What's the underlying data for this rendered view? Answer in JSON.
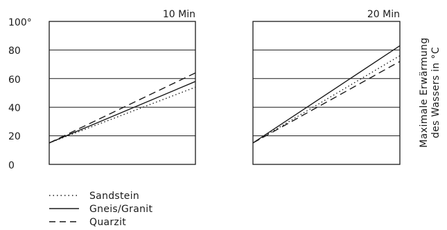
{
  "chart_data": {
    "type": "line",
    "ylabel_line1": "Maximale Erwärmung",
    "ylabel_line2": "des Wassers in °C",
    "ylim": [
      0,
      100
    ],
    "y_ticks": [
      "0",
      "20",
      "40",
      "60",
      "80",
      "100°"
    ],
    "grid": "horizontal",
    "legend_position": "bottom-left",
    "line_colors": "#1a1a1a",
    "legend": [
      {
        "key": "sandstein",
        "label": "Sandstein",
        "style": "dotted"
      },
      {
        "key": "gneis",
        "label": "Gneis/Granit",
        "style": "solid"
      },
      {
        "key": "quarzit",
        "label": "Quarzit",
        "style": "dashed"
      }
    ],
    "panels": [
      {
        "title": "10 Min",
        "series": [
          {
            "key": "sandstein",
            "start": 15,
            "end": 54
          },
          {
            "key": "gneis",
            "start": 15,
            "end": 58
          },
          {
            "key": "quarzit",
            "start": 15,
            "end": 64
          }
        ]
      },
      {
        "title": "20 Min",
        "series": [
          {
            "key": "sandstein",
            "start": 15,
            "end": 76
          },
          {
            "key": "gneis",
            "start": 15,
            "end": 83
          },
          {
            "key": "quarzit",
            "start": 15,
            "end": 72
          }
        ]
      }
    ]
  }
}
